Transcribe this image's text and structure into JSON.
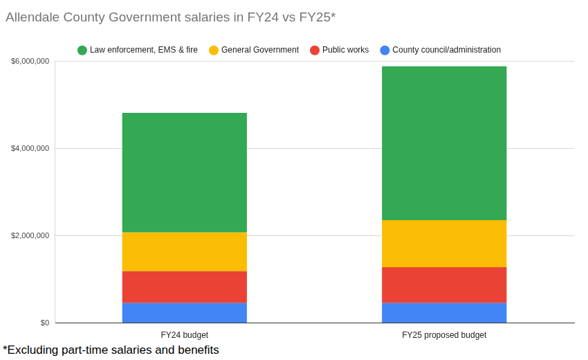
{
  "chart_data": {
    "type": "bar",
    "title": "Allendale County Government salaries in FY24 vs FY25*",
    "annotations": [
      "*Excluding part-time salaries and benefits"
    ],
    "categories": [
      "FY24 budget",
      "FY25 proposed budget"
    ],
    "series": [
      {
        "name": "County council/administration",
        "color": "#4285f4",
        "values": [
          460000,
          460000
        ]
      },
      {
        "name": "Public works",
        "color": "#ea4335",
        "values": [
          730000,
          820000
        ]
      },
      {
        "name": "General Government",
        "color": "#fbbc04",
        "values": [
          890000,
          1080000
        ]
      },
      {
        "name": "Law enforcement, EMS & fire",
        "color": "#34a853",
        "values": [
          2740000,
          3530000
        ]
      }
    ],
    "stacked": true,
    "legend": "top",
    "grid": true,
    "ylim": [
      0,
      6000000
    ],
    "yticks": [
      {
        "value": 0,
        "label": "$0"
      },
      {
        "value": 2000000,
        "label": "$2,000,000"
      },
      {
        "value": 4000000,
        "label": "$4,000,000"
      },
      {
        "value": 6000000,
        "label": "$6,000,000"
      }
    ]
  }
}
